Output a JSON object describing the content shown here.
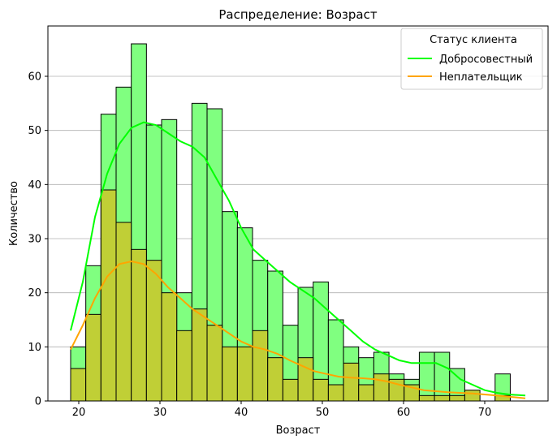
{
  "chart_data": {
    "type": "histogram",
    "title": "Распределение: Возраст",
    "xlabel": "Возраст",
    "ylabel": "Количество",
    "xlim": [
      16.2,
      77.8
    ],
    "ylim": [
      0,
      69.3
    ],
    "xticks": [
      20,
      30,
      40,
      50,
      60,
      70
    ],
    "yticks": [
      0,
      10,
      20,
      30,
      40,
      50,
      60
    ],
    "grid": "horizontal",
    "bin_start": 19,
    "bin_width": 1.867,
    "legend": {
      "title": "Статус клиента",
      "placement": "top-right",
      "entries": [
        "Добросовестный",
        "Неплательщик"
      ]
    },
    "series": [
      {
        "name": "Добросовестный",
        "color": "#00ff00",
        "bar_color": "#80ff80",
        "values": [
          10,
          25,
          53,
          58,
          66,
          51,
          52,
          20,
          55,
          54,
          35,
          32,
          26,
          24,
          14,
          21,
          22,
          15,
          10,
          8,
          9,
          5,
          4,
          9,
          9,
          6,
          1,
          0,
          5
        ],
        "kde": [
          [
            19,
            13
          ],
          [
            20.5,
            22
          ],
          [
            22,
            34
          ],
          [
            23.5,
            42
          ],
          [
            25,
            47.5
          ],
          [
            26.5,
            50.5
          ],
          [
            28,
            51.5
          ],
          [
            29.5,
            51
          ],
          [
            31,
            49.5
          ],
          [
            32.5,
            48
          ],
          [
            34,
            47
          ],
          [
            35.5,
            45
          ],
          [
            37,
            41
          ],
          [
            38.5,
            37
          ],
          [
            40,
            32
          ],
          [
            41.5,
            28
          ],
          [
            43,
            26
          ],
          [
            44.5,
            24
          ],
          [
            46,
            22
          ],
          [
            47.5,
            20.5
          ],
          [
            49,
            19
          ],
          [
            50.5,
            17
          ],
          [
            52,
            15
          ],
          [
            53.5,
            13
          ],
          [
            55,
            11
          ],
          [
            56.5,
            9.5
          ],
          [
            58,
            8.5
          ],
          [
            59.5,
            7.5
          ],
          [
            61,
            7
          ],
          [
            62.5,
            7
          ],
          [
            64,
            7
          ],
          [
            65.5,
            6
          ],
          [
            67,
            4
          ],
          [
            68.5,
            3
          ],
          [
            70,
            2
          ],
          [
            71.5,
            1.5
          ],
          [
            73,
            1.2
          ],
          [
            75,
            1
          ]
        ]
      },
      {
        "name": "Неплательщик",
        "color": "#ffa500",
        "bar_color": "#c0cf36",
        "values": [
          6,
          16,
          39,
          33,
          28,
          26,
          20,
          13,
          17,
          14,
          10,
          10,
          13,
          8,
          4,
          8,
          4,
          3,
          7,
          3,
          5,
          4,
          3,
          1,
          1,
          1,
          2,
          0,
          1
        ],
        "kde": [
          [
            19,
            9.5
          ],
          [
            20.5,
            14
          ],
          [
            22,
            19
          ],
          [
            23.5,
            23
          ],
          [
            25,
            25.3
          ],
          [
            26.5,
            25.8
          ],
          [
            28,
            25.3
          ],
          [
            29.5,
            23.5
          ],
          [
            31,
            21
          ],
          [
            32.5,
            19
          ],
          [
            34,
            17
          ],
          [
            35.5,
            15.5
          ],
          [
            37,
            14
          ],
          [
            38.5,
            12.5
          ],
          [
            40,
            11
          ],
          [
            41.5,
            10
          ],
          [
            43,
            9.5
          ],
          [
            44.5,
            8.7
          ],
          [
            46,
            7.5
          ],
          [
            47.5,
            6.5
          ],
          [
            49,
            5.5
          ],
          [
            50.5,
            5
          ],
          [
            52,
            4.5
          ],
          [
            53.5,
            4.3
          ],
          [
            55,
            4.2
          ],
          [
            56.5,
            4
          ],
          [
            58,
            3.6
          ],
          [
            59.5,
            3
          ],
          [
            61,
            2.5
          ],
          [
            62.5,
            2
          ],
          [
            64,
            1.8
          ],
          [
            65.5,
            1.6
          ],
          [
            67,
            1.5
          ],
          [
            68.5,
            1.4
          ],
          [
            70,
            1.2
          ],
          [
            71.5,
            1
          ],
          [
            73,
            0.8
          ],
          [
            75,
            0.5
          ]
        ]
      }
    ]
  }
}
